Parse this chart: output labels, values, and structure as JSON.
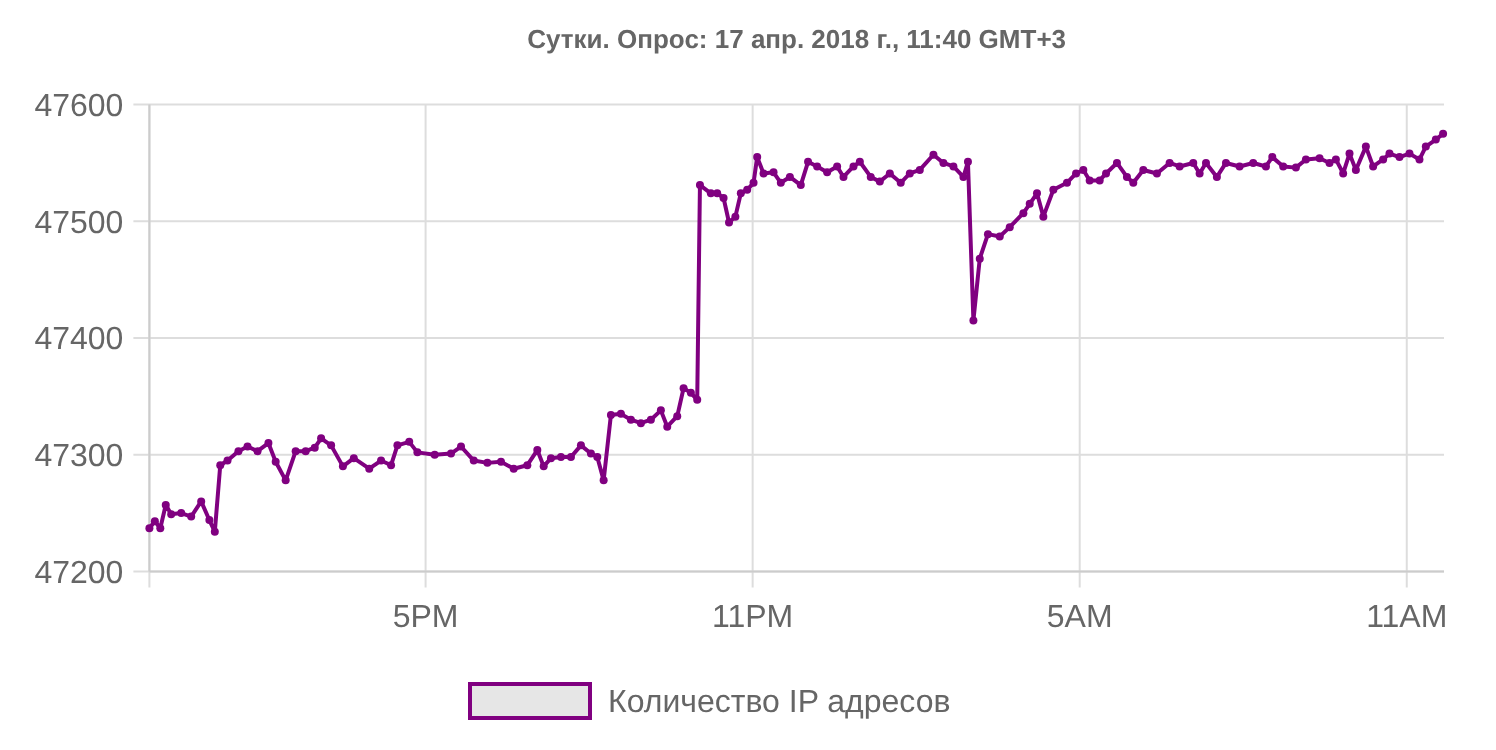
{
  "chart_data": {
    "type": "line",
    "title": "Сутки. Опрос: 17 апр. 2018 г., 11:40 GMT+3",
    "x": [
      "2018-04-16T11:56",
      "2018-04-16T12:02",
      "2018-04-16T12:08",
      "2018-04-16T12:14",
      "2018-04-16T12:20",
      "2018-04-16T12:31",
      "2018-04-16T12:42",
      "2018-04-16T12:53",
      "2018-04-16T13:02",
      "2018-04-16T13:08",
      "2018-04-16T13:14",
      "2018-04-16T13:22",
      "2018-04-16T13:34",
      "2018-04-16T13:44",
      "2018-04-16T13:55",
      "2018-04-16T14:07",
      "2018-04-16T14:15",
      "2018-04-16T14:26",
      "2018-04-16T14:37",
      "2018-04-16T14:48",
      "2018-04-16T14:58",
      "2018-04-16T15:05",
      "2018-04-16T15:16",
      "2018-04-16T15:29",
      "2018-04-16T15:41",
      "2018-04-16T15:58",
      "2018-04-16T16:11",
      "2018-04-16T16:22",
      "2018-04-16T16:29",
      "2018-04-16T16:42",
      "2018-04-16T16:51",
      "2018-04-16T17:10",
      "2018-04-16T17:28",
      "2018-04-16T17:39",
      "2018-04-16T17:53",
      "2018-04-16T18:08",
      "2018-04-16T18:23",
      "2018-04-16T18:37",
      "2018-04-16T18:52",
      "2018-04-16T19:03",
      "2018-04-16T19:10",
      "2018-04-16T19:18",
      "2018-04-16T19:29",
      "2018-04-16T19:40",
      "2018-04-16T19:51",
      "2018-04-16T20:02",
      "2018-04-16T20:09",
      "2018-04-16T20:16",
      "2018-04-16T20:24",
      "2018-04-16T20:35",
      "2018-04-16T20:46",
      "2018-04-16T20:57",
      "2018-04-16T21:08",
      "2018-04-16T21:19",
      "2018-04-16T21:26",
      "2018-04-16T21:37",
      "2018-04-16T21:44",
      "2018-04-16T21:52",
      "2018-04-16T21:59",
      "2018-04-16T22:02",
      "2018-04-16T22:14",
      "2018-04-16T22:21",
      "2018-04-16T22:28",
      "2018-04-16T22:34",
      "2018-04-16T22:41",
      "2018-04-16T22:47",
      "2018-04-16T22:54",
      "2018-04-16T23:01",
      "2018-04-16T23:05",
      "2018-04-16T23:12",
      "2018-04-16T23:23",
      "2018-04-16T23:31",
      "2018-04-16T23:41",
      "2018-04-16T23:53",
      "2018-04-17T00:01",
      "2018-04-17T00:11",
      "2018-04-17T00:22",
      "2018-04-17T00:33",
      "2018-04-17T00:40",
      "2018-04-17T00:51",
      "2018-04-17T00:58",
      "2018-04-17T01:10",
      "2018-04-17T01:20",
      "2018-04-17T01:31",
      "2018-04-17T01:43",
      "2018-04-17T01:53",
      "2018-04-17T02:04",
      "2018-04-17T02:19",
      "2018-04-17T02:30",
      "2018-04-17T02:41",
      "2018-04-17T02:52",
      "2018-04-17T02:57",
      "2018-04-17T03:03",
      "2018-04-17T03:10",
      "2018-04-17T03:19",
      "2018-04-17T03:32",
      "2018-04-17T03:43",
      "2018-04-17T03:58",
      "2018-04-17T04:05",
      "2018-04-17T04:13",
      "2018-04-17T04:20",
      "2018-04-17T04:31",
      "2018-04-17T04:46",
      "2018-04-17T04:56",
      "2018-04-17T05:04",
      "2018-04-17T05:11",
      "2018-04-17T05:22",
      "2018-04-17T05:29",
      "2018-04-17T05:41",
      "2018-04-17T05:52",
      "2018-04-17T05:59",
      "2018-04-17T06:10",
      "2018-04-17T06:25",
      "2018-04-17T06:39",
      "2018-04-17T06:50",
      "2018-04-17T07:05",
      "2018-04-17T07:12",
      "2018-04-17T07:19",
      "2018-04-17T07:31",
      "2018-04-17T07:41",
      "2018-04-17T07:56",
      "2018-04-17T08:11",
      "2018-04-17T08:25",
      "2018-04-17T08:32",
      "2018-04-17T08:44",
      "2018-04-17T08:58",
      "2018-04-17T09:09",
      "2018-04-17T09:24",
      "2018-04-17T09:35",
      "2018-04-17T09:42",
      "2018-04-17T09:50",
      "2018-04-17T09:57",
      "2018-04-17T10:04",
      "2018-04-17T10:15",
      "2018-04-17T10:23",
      "2018-04-17T10:34",
      "2018-04-17T10:41",
      "2018-04-17T10:52",
      "2018-04-17T11:03",
      "2018-04-17T11:14",
      "2018-04-17T11:21",
      "2018-04-17T11:32",
      "2018-04-17T11:40"
    ],
    "series": [
      {
        "name": "Количество IP адресов",
        "color": "#800080",
        "values": [
          47237,
          47243,
          47237,
          47257,
          47249,
          47250,
          47247,
          47260,
          47244,
          47234,
          47291,
          47295,
          47303,
          47307,
          47303,
          47310,
          47294,
          47278,
          47303,
          47303,
          47306,
          47314,
          47308,
          47290,
          47297,
          47288,
          47295,
          47291,
          47308,
          47311,
          47302,
          47300,
          47301,
          47307,
          47295,
          47293,
          47294,
          47288,
          47291,
          47304,
          47290,
          47297,
          47298,
          47298,
          47308,
          47301,
          47298,
          47278,
          47334,
          47335,
          47330,
          47327,
          47330,
          47338,
          47324,
          47333,
          47357,
          47353,
          47347,
          47531,
          47524,
          47524,
          47520,
          47499,
          47504,
          47524,
          47527,
          47533,
          47555,
          47541,
          47542,
          47533,
          47538,
          47531,
          47551,
          47547,
          47542,
          47547,
          47538,
          47547,
          47551,
          47538,
          47534,
          47541,
          47533,
          47541,
          47544,
          47557,
          47550,
          47547,
          47538,
          47551,
          47415,
          47468,
          47489,
          47487,
          47495,
          47507,
          47515,
          47524,
          47504,
          47527,
          47533,
          47541,
          47544,
          47535,
          47535,
          47541,
          47550,
          47538,
          47533,
          47544,
          47541,
          47550,
          47547,
          47550,
          47541,
          47550,
          47538,
          47550,
          47547,
          47550,
          47547,
          47555,
          47547,
          47546,
          47553,
          47554,
          47550,
          47553,
          47541,
          47558,
          47544,
          47564,
          47547,
          47553,
          47558,
          47555,
          47558,
          47553,
          47564,
          47570,
          47575
        ]
      }
    ],
    "xlim": [
      "2018-04-16T11:56",
      "2018-04-17T11:41"
    ],
    "xticks": [
      {
        "value": "2018-04-16T17:00",
        "label": "5PM"
      },
      {
        "value": "2018-04-16T23:00",
        "label": "11PM"
      },
      {
        "value": "2018-04-17T05:00",
        "label": "5AM"
      },
      {
        "value": "2018-04-17T11:00",
        "label": "11AM"
      }
    ],
    "ylim": [
      47200,
      47600
    ],
    "yticks": [
      47200,
      47300,
      47400,
      47500,
      47600
    ],
    "grid": true,
    "legend": "bottom",
    "marker": "circle",
    "line_style": "solid"
  }
}
